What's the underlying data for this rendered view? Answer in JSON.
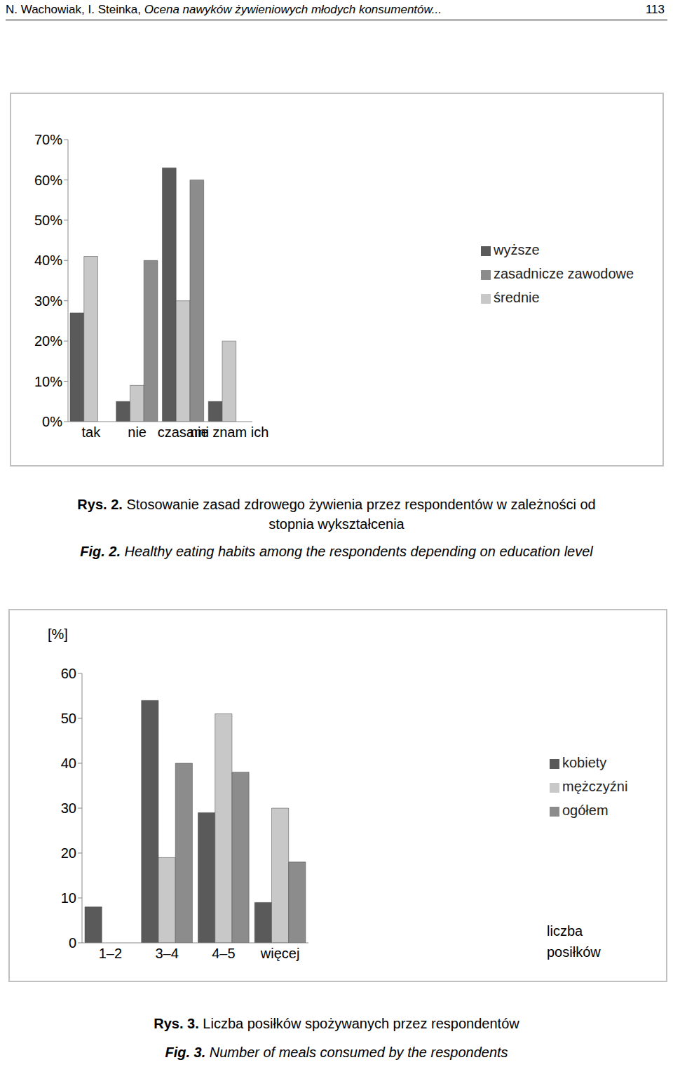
{
  "header": {
    "text": "N. Wachowiak, I. Steinka, Ocena nawyków żywieniowych młodych konsumentów...",
    "page": 113
  },
  "chart_data": [
    {
      "type": "bar",
      "title": "Rys. 2. Stosowanie zasad zdrowego żywienia przez respondentów w zależności od stopnia wykształcenia",
      "subtitle": "Fig. 2. Healthy eating habits among the respondents depending on education level",
      "categories": [
        "tak",
        "nie",
        "czasami",
        "nie znam ich"
      ],
      "series": [
        {
          "name": "wyższe",
          "color": "#5a5a5a",
          "values": [
            27,
            5,
            63,
            5
          ]
        },
        {
          "name": "średnie",
          "color": "#c8c8c8",
          "values": [
            41,
            9,
            30,
            20
          ]
        },
        {
          "name": "zasadnicze zawodowe",
          "color": "#8c8c8c",
          "values": [
            0,
            40,
            60,
            0
          ]
        }
      ],
      "ylim": [
        0,
        70
      ],
      "yticks": [
        {
          "value": 0,
          "label": "0%"
        },
        {
          "value": 10,
          "label": "10%"
        },
        {
          "value": 20,
          "label": "20%"
        },
        {
          "value": 30,
          "label": "30%"
        },
        {
          "value": 40,
          "label": "40%"
        },
        {
          "value": 50,
          "label": "50%"
        },
        {
          "value": 60,
          "label": "60%"
        },
        {
          "value": 70,
          "label": "70%"
        }
      ],
      "grid": false,
      "legend": "right"
    },
    {
      "type": "bar",
      "title": "Rys. 3. Liczba posiłków spożywanych przez respondentów",
      "subtitle": "Fig. 3. Number of meals consumed by the respondents",
      "x_label": "liczba posiłków",
      "y_label": "[%]",
      "categories": [
        "1–2",
        "3–4",
        "4–5",
        "więcej"
      ],
      "series": [
        {
          "name": "kobiety",
          "color": "#5a5a5a",
          "values": [
            8,
            54,
            29,
            9
          ]
        },
        {
          "name": "mężczyźni",
          "color": "#c8c8c8",
          "values": [
            0,
            19,
            51,
            30
          ]
        },
        {
          "name": "ogółem",
          "color": "#8c8c8c",
          "values": [
            0,
            40,
            38,
            18
          ]
        }
      ],
      "ylim": [
        0,
        60
      ],
      "yticks": [
        0,
        10,
        20,
        30,
        40,
        50,
        60
      ],
      "grid": false,
      "legend": "right"
    }
  ]
}
